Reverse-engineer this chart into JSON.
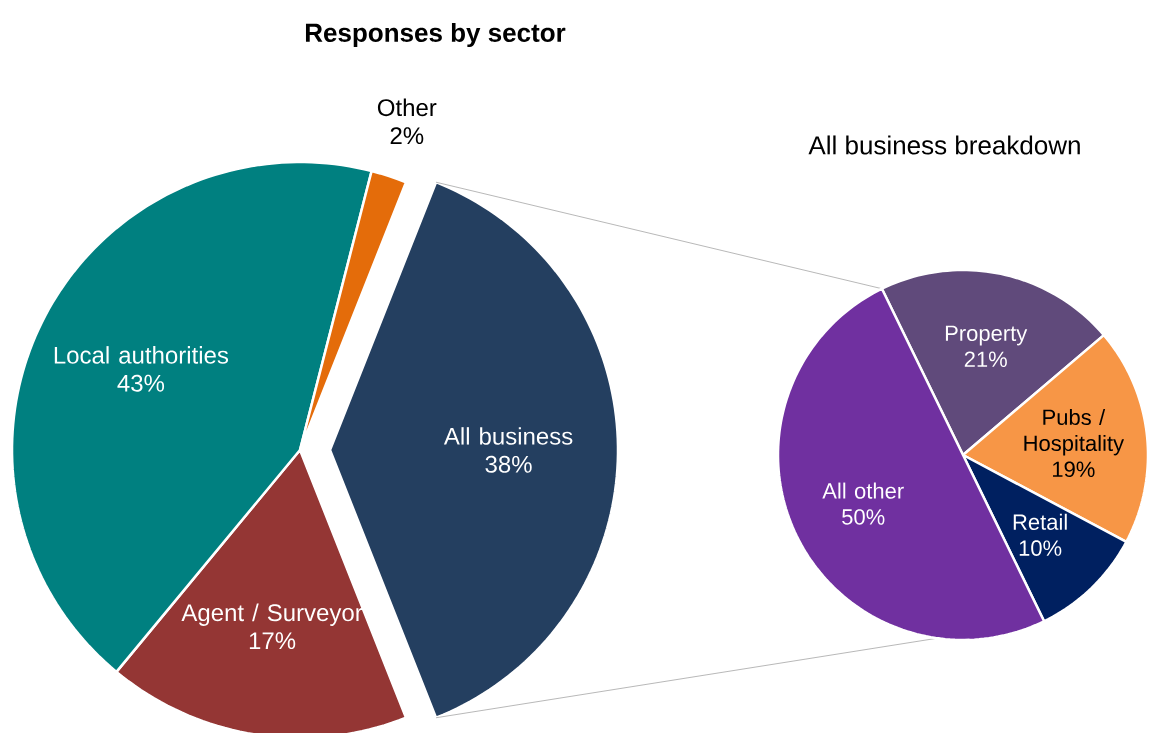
{
  "chart_data": [
    {
      "type": "pie",
      "title": "Responses by sector",
      "categories": [
        "All business",
        "Agent / Surveyor",
        "Local authorities",
        "Other"
      ],
      "values": [
        38,
        17,
        43,
        2
      ],
      "value_labels": [
        "38%",
        "17%",
        "43%",
        "2%"
      ],
      "colors": [
        "#243f60",
        "#943634",
        "#008080",
        "#e46c0a"
      ]
    },
    {
      "type": "pie",
      "title": "All business breakdown",
      "categories": [
        "Property",
        "Pubs / Hospitality",
        "Retail",
        "All other"
      ],
      "values": [
        21,
        19,
        10,
        50
      ],
      "value_labels": [
        "21%",
        "19%",
        "10%",
        "50%"
      ],
      "colors": [
        "#604a7b",
        "#f79646",
        "#002060",
        "#7030a0"
      ]
    }
  ]
}
